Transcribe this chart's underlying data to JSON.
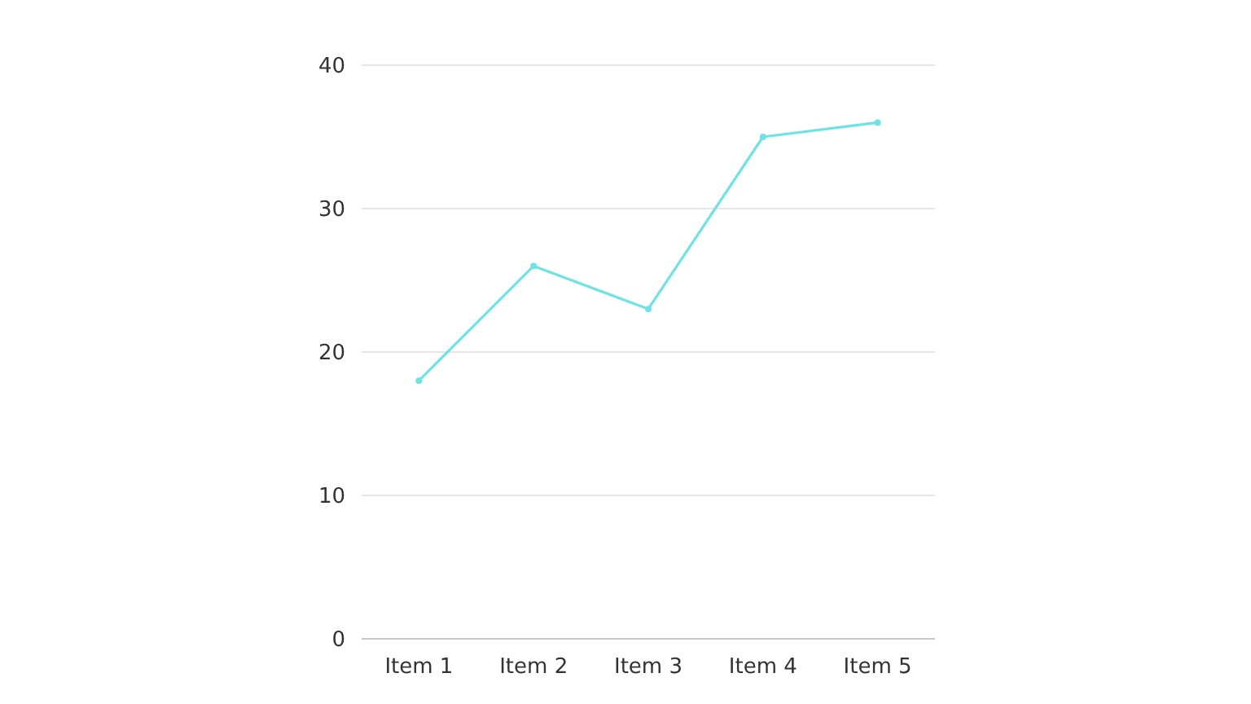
{
  "chart_data": {
    "type": "line",
    "categories": [
      "Item 1",
      "Item 2",
      "Item 3",
      "Item 4",
      "Item 5"
    ],
    "series": [
      {
        "color": "#6fe3e3",
        "values": [
          18,
          26,
          23,
          35,
          36
        ]
      }
    ],
    "ylim": [
      0,
      40
    ],
    "yticks": [
      0,
      10,
      20,
      30,
      40
    ],
    "grid": "y",
    "marker": "circle",
    "line_style": "solid"
  }
}
